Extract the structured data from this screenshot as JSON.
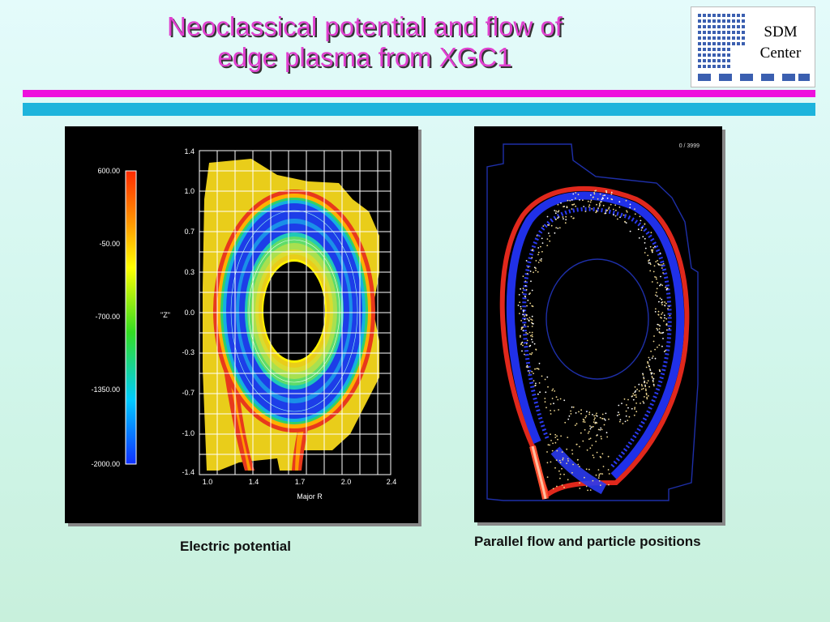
{
  "title": {
    "line1": "Neoclassical potential and flow of",
    "line2": "edge plasma from XGC1"
  },
  "logo": {
    "line1": "SDM",
    "line2": "Center"
  },
  "left_panel": {
    "colorbar_ticks": [
      "600.00",
      "-50.00",
      "-700.00",
      "-1350.00",
      "-2000.00"
    ],
    "y_ticks": [
      "1.4",
      "1.0",
      "0.7",
      "0.3",
      "0.0",
      "-0.3",
      "-0.7",
      "-1.0",
      "-1.4"
    ],
    "x_ticks": [
      "1.0",
      "1.4",
      "1.7",
      "2.0",
      "2.4"
    ],
    "y_label": "\"Z\"",
    "x_label": "Major R",
    "caption": "Electric potential"
  },
  "right_panel": {
    "counter": "0 / 3999",
    "caption": "Parallel flow and particle positions"
  },
  "colors": {
    "title": "#e040d0",
    "bar_magenta": "#ee11dd",
    "bar_cyan": "#1eb4dc",
    "logo_blue": "#3b5fb0"
  }
}
